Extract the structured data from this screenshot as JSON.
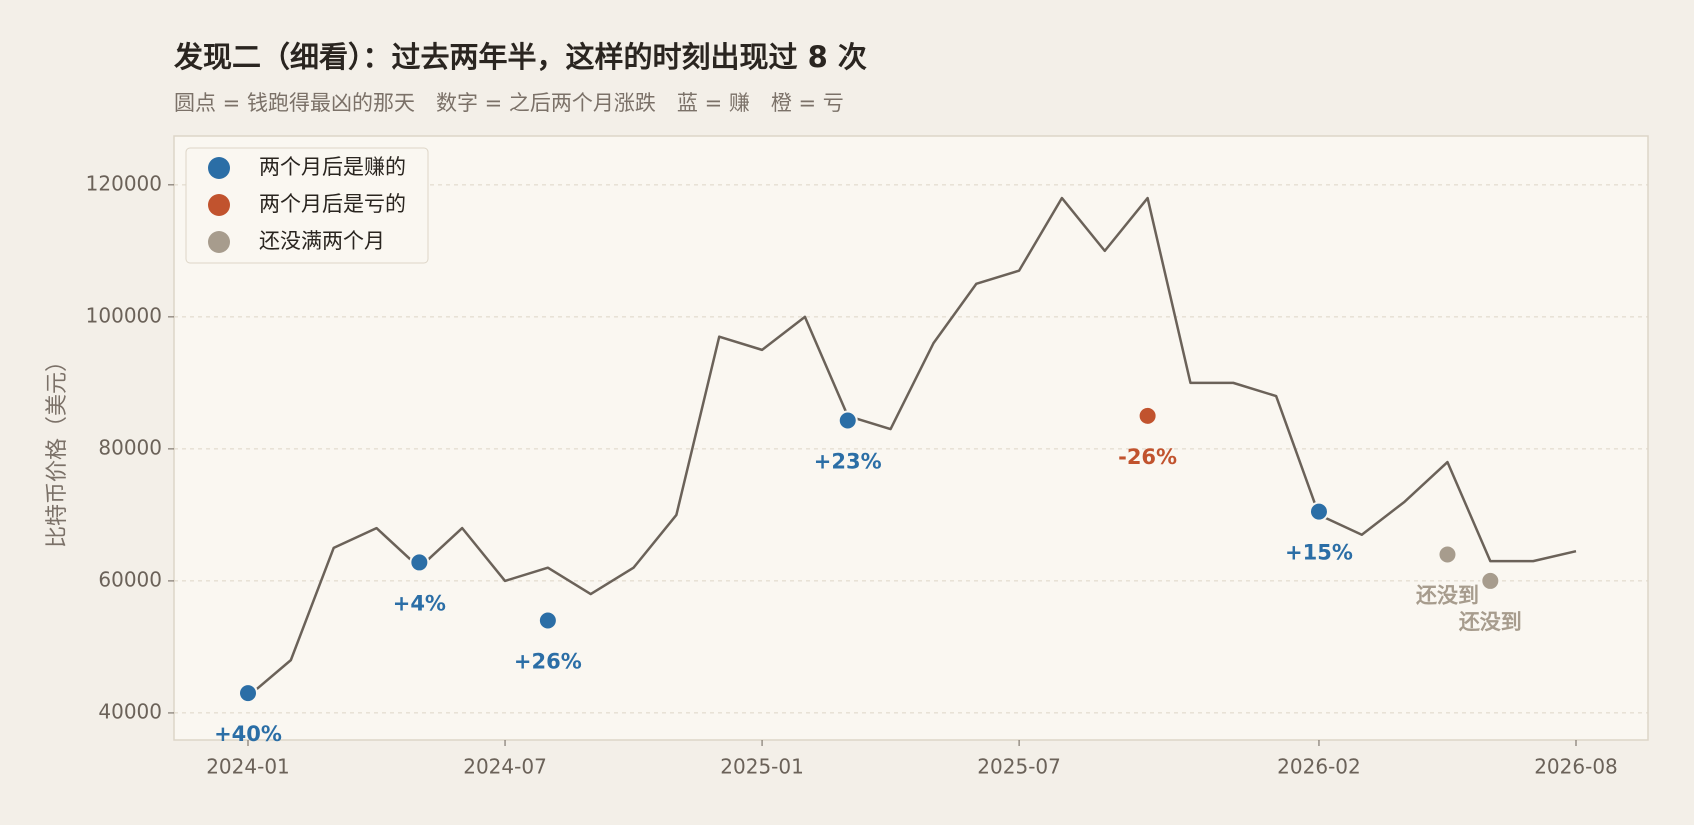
{
  "chart_data": {
    "type": "line",
    "title": "发现二（细看）：过去两年半，这样的时刻出现过 8 次",
    "subtitle": "圆点 = 钱跑得最凶的那天　数字 = 之后两个月涨跌　蓝 = 赚　橙 = 亏",
    "y_label": "比特币价格（美元）",
    "x": [
      "2024-01",
      "2024-02",
      "2024-03",
      "2024-04",
      "2024-05",
      "2024-06",
      "2024-07",
      "2024-08",
      "2024-09",
      "2024-10",
      "2024-11",
      "2024-12",
      "2025-01",
      "2025-02",
      "2025-03",
      "2025-04",
      "2025-05",
      "2025-06",
      "2025-07",
      "2025-08",
      "2025-09",
      "2025-10",
      "2025-11",
      "2025-12",
      "2026-01",
      "2026-02",
      "2026-03",
      "2026-04",
      "2026-05",
      "2026-06",
      "2026-07",
      "2026-08"
    ],
    "values": [
      42500,
      48000,
      65000,
      68000,
      62000,
      68000,
      60000,
      62000,
      58000,
      62000,
      70000,
      97000,
      95000,
      100000,
      85000,
      83000,
      96000,
      105000,
      107000,
      118000,
      110000,
      118000,
      90000,
      90000,
      88000,
      70000,
      67000,
      72000,
      78000,
      63000,
      63000,
      64500
    ],
    "color": "#6b6259",
    "ylim": [
      35900,
      127400
    ],
    "yticks": [
      40000,
      60000,
      80000,
      100000,
      120000
    ],
    "xticks": [
      "2024-01",
      "2024-07",
      "2025-01",
      "2025-07",
      "2026-02",
      "2026-08"
    ],
    "grid": true,
    "legend_position": "upper left",
    "legend": [
      {
        "name": "两个月后是赚的",
        "color": "#2b6ea6"
      },
      {
        "name": "两个月后是亏的",
        "color": "#c1532e"
      },
      {
        "name": "还没满两个月",
        "color": "#a79c8d"
      }
    ],
    "events": [
      {
        "x": "2024-01",
        "value": 43000,
        "label": "+40%",
        "color": "#2b6ea6"
      },
      {
        "x": "2024-05",
        "value": 62800,
        "label": "+4%",
        "color": "#2b6ea6"
      },
      {
        "x": "2024-08",
        "value": 54000,
        "label": "+26%",
        "color": "#2b6ea6"
      },
      {
        "x": "2025-03",
        "value": 84300,
        "label": "+23%",
        "color": "#2b6ea6"
      },
      {
        "x": "2025-10",
        "value": 85000,
        "label": "-26%",
        "color": "#c1532e"
      },
      {
        "x": "2026-02",
        "value": 70500,
        "label": "+15%",
        "color": "#2b6ea6"
      },
      {
        "x": "2026-05",
        "value": 64000,
        "label": "还没到",
        "color": "#a79c8d"
      },
      {
        "x": "2026-06",
        "value": 60000,
        "label": "还没到",
        "color": "#a79c8d"
      }
    ]
  }
}
